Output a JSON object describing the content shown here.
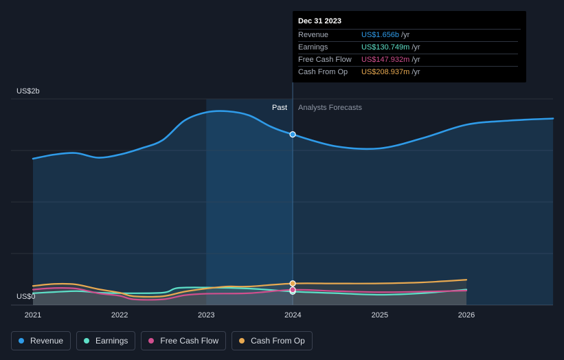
{
  "chart_data": {
    "type": "line",
    "y_axis_top_label": "US$2b",
    "y_axis_bottom_label": "US$0",
    "ylim": [
      0,
      2000
    ],
    "x_ticks": [
      "2021",
      "2022",
      "2023",
      "2024",
      "2025",
      "2026"
    ],
    "past_label": "Past",
    "forecast_label": "Analysts Forecasts",
    "series": [
      {
        "name": "Revenue",
        "color": "#2f9be8",
        "points": [
          [
            "2021-01-01",
            1420
          ],
          [
            "2021-04-01",
            1460
          ],
          [
            "2021-07-01",
            1475
          ],
          [
            "2021-10-01",
            1430
          ],
          [
            "2022-01-01",
            1460
          ],
          [
            "2022-04-01",
            1520
          ],
          [
            "2022-07-01",
            1600
          ],
          [
            "2022-10-01",
            1790
          ],
          [
            "2023-01-01",
            1870
          ],
          [
            "2023-04-01",
            1880
          ],
          [
            "2023-07-01",
            1840
          ],
          [
            "2023-10-01",
            1730
          ],
          [
            "2023-12-31",
            1656
          ],
          [
            "2024-07-01",
            1540
          ],
          [
            "2025-01-01",
            1520
          ],
          [
            "2025-07-01",
            1620
          ],
          [
            "2026-01-01",
            1750
          ],
          [
            "2026-07-01",
            1790
          ],
          [
            "2027-01-01",
            1810
          ]
        ]
      },
      {
        "name": "Earnings",
        "color": "#5ee0c8",
        "points": [
          [
            "2021-01-01",
            115
          ],
          [
            "2021-07-01",
            135
          ],
          [
            "2021-10-01",
            120
          ],
          [
            "2022-01-01",
            115
          ],
          [
            "2022-07-01",
            120
          ],
          [
            "2022-09-01",
            165
          ],
          [
            "2023-01-01",
            170
          ],
          [
            "2023-07-01",
            160
          ],
          [
            "2023-12-31",
            131
          ],
          [
            "2024-07-01",
            115
          ],
          [
            "2025-01-01",
            100
          ],
          [
            "2025-07-01",
            115
          ],
          [
            "2026-01-01",
            150
          ]
        ]
      },
      {
        "name": "Free Cash Flow",
        "color": "#d04f8e",
        "points": [
          [
            "2021-01-01",
            150
          ],
          [
            "2021-04-01",
            165
          ],
          [
            "2021-07-01",
            160
          ],
          [
            "2021-10-01",
            115
          ],
          [
            "2022-01-01",
            90
          ],
          [
            "2022-03-01",
            55
          ],
          [
            "2022-07-01",
            55
          ],
          [
            "2022-10-01",
            95
          ],
          [
            "2023-01-01",
            110
          ],
          [
            "2023-07-01",
            115
          ],
          [
            "2023-12-31",
            148
          ],
          [
            "2024-07-01",
            135
          ],
          [
            "2025-01-01",
            125
          ],
          [
            "2025-07-01",
            130
          ],
          [
            "2026-01-01",
            140
          ]
        ]
      },
      {
        "name": "Cash From Op",
        "color": "#e8a951",
        "points": [
          [
            "2021-01-01",
            185
          ],
          [
            "2021-04-01",
            205
          ],
          [
            "2021-07-01",
            200
          ],
          [
            "2021-10-01",
            155
          ],
          [
            "2022-01-01",
            120
          ],
          [
            "2022-03-01",
            85
          ],
          [
            "2022-07-01",
            85
          ],
          [
            "2022-10-01",
            130
          ],
          [
            "2023-01-01",
            160
          ],
          [
            "2023-04-01",
            180
          ],
          [
            "2023-07-01",
            180
          ],
          [
            "2023-12-31",
            209
          ],
          [
            "2024-07-01",
            209
          ],
          [
            "2025-01-01",
            210
          ],
          [
            "2025-07-01",
            220
          ],
          [
            "2026-01-01",
            245
          ]
        ]
      }
    ],
    "highlight_date": "2023-12-31"
  },
  "tooltip": {
    "date": "Dec 31 2023",
    "unit": "/yr",
    "rows": [
      {
        "label": "Revenue",
        "value": "US$1.656b",
        "color": "#2f9be8"
      },
      {
        "label": "Earnings",
        "value": "US$130.749m",
        "color": "#5ee0c8"
      },
      {
        "label": "Free Cash Flow",
        "value": "US$147.932m",
        "color": "#d04f8e"
      },
      {
        "label": "Cash From Op",
        "value": "US$208.937m",
        "color": "#e8a951"
      }
    ]
  },
  "legend": {
    "items": [
      {
        "label": "Revenue",
        "color": "#2f9be8"
      },
      {
        "label": "Earnings",
        "color": "#5ee0c8"
      },
      {
        "label": "Free Cash Flow",
        "color": "#d04f8e"
      },
      {
        "label": "Cash From Op",
        "color": "#e8a951"
      }
    ]
  }
}
